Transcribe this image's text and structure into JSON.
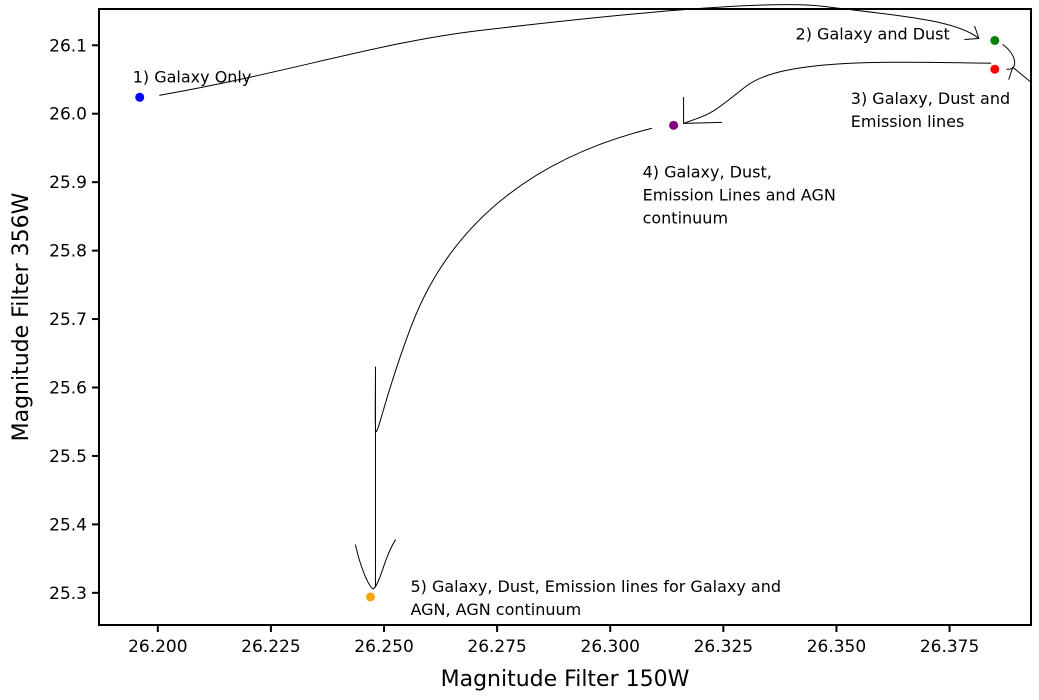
{
  "chart_data": {
    "type": "scatter",
    "xlabel": "Magnitude Filter 150W",
    "ylabel": "Magnitude Filter 356W",
    "xlim": [
      26.187,
      26.393
    ],
    "ylim": [
      25.253,
      26.153
    ],
    "xticks": [
      26.2,
      26.225,
      26.25,
      26.275,
      26.3,
      26.325,
      26.35,
      26.375
    ],
    "xtick_labels": [
      "26.200",
      "26.225",
      "26.250",
      "26.275",
      "26.300",
      "26.325",
      "26.350",
      "26.375"
    ],
    "yticks": [
      25.3,
      25.4,
      25.5,
      25.6,
      25.7,
      25.8,
      25.9,
      26.0,
      26.1
    ],
    "ytick_labels": [
      "25.3",
      "25.4",
      "25.5",
      "25.6",
      "25.7",
      "25.8",
      "25.9",
      "26.0",
      "26.1"
    ],
    "grid": false,
    "points": [
      {
        "x": 26.196,
        "y": 26.024,
        "color": "#0000ff",
        "label_lines": [
          "1) Galaxy Only"
        ]
      },
      {
        "x": 26.385,
        "y": 26.107,
        "color": "#008000",
        "label_lines": [
          "2) Galaxy and Dust"
        ]
      },
      {
        "x": 26.385,
        "y": 26.065,
        "color": "#ff0000",
        "label_lines": [
          "3) Galaxy, Dust and",
          "Emission lines"
        ]
      },
      {
        "x": 26.314,
        "y": 25.983,
        "color": "#800080",
        "label_lines": [
          "4) Galaxy, Dust,",
          "Emission Lines and AGN",
          "continuum"
        ]
      },
      {
        "x": 26.247,
        "y": 25.294,
        "color": "#ffa500",
        "label_lines": [
          "5) Galaxy, Dust, Emission lines for Galaxy and",
          "AGN, AGN continuum"
        ]
      }
    ],
    "arrows": [
      {
        "from": 1,
        "to": 2
      },
      {
        "from": 2,
        "to": 3
      },
      {
        "from": 3,
        "to": 4
      },
      {
        "from": 4,
        "to": 5
      }
    ]
  }
}
